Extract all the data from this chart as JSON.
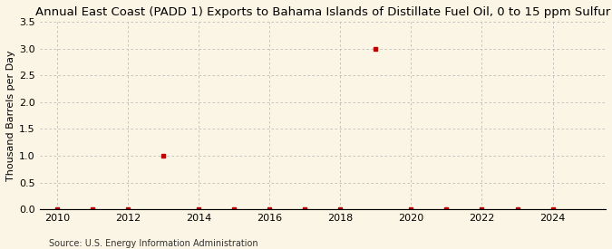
{
  "title": "Annual East Coast (PADD 1) Exports to Bahama Islands of Distillate Fuel Oil, 0 to 15 ppm Sulfur",
  "ylabel": "Thousand Barrels per Day",
  "source": "Source: U.S. Energy Information Administration",
  "xlim": [
    2009.5,
    2025.5
  ],
  "ylim": [
    0.0,
    3.5
  ],
  "xticks": [
    2010,
    2012,
    2014,
    2016,
    2018,
    2020,
    2022,
    2024
  ],
  "yticks": [
    0.0,
    0.5,
    1.0,
    1.5,
    2.0,
    2.5,
    3.0,
    3.5
  ],
  "years": [
    2010,
    2011,
    2012,
    2013,
    2014,
    2015,
    2016,
    2017,
    2018,
    2019,
    2020,
    2021,
    2022,
    2023,
    2024
  ],
  "values": [
    0.0,
    0.0,
    0.0,
    1.0,
    0.0,
    0.0,
    0.0,
    0.0,
    0.0,
    3.0,
    0.0,
    0.0,
    0.0,
    0.0,
    0.0
  ],
  "marker_color": "#bb0000",
  "marker_size": 3.5,
  "background_color": "#faf5e4",
  "grid_color": "#bbbbbb",
  "title_fontsize": 9.5,
  "label_fontsize": 8,
  "tick_fontsize": 8,
  "source_fontsize": 7
}
